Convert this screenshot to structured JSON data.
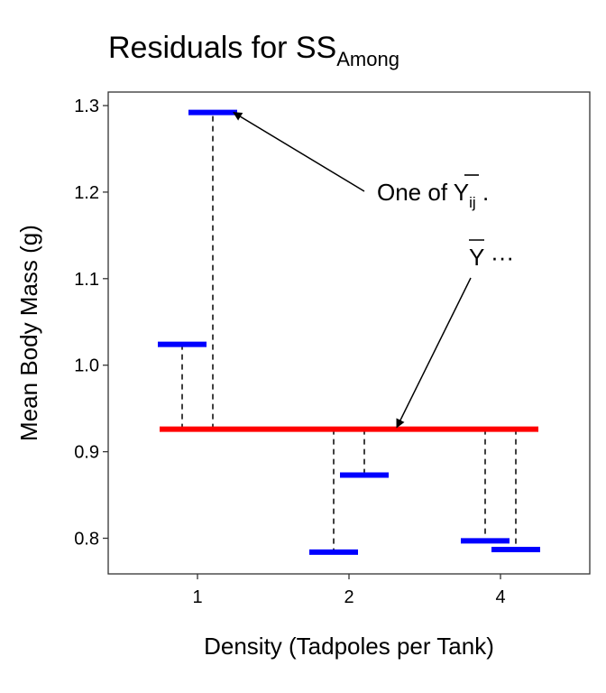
{
  "chart_data": {
    "type": "line",
    "title": "Residuals for SS",
    "title_subscript": "Among",
    "xlabel": "Density (Tadpoles per Tank)",
    "ylabel": "Mean Body Mass (g)",
    "categories": [
      "1",
      "2",
      "4"
    ],
    "ylim": [
      0.76,
      1.31
    ],
    "yticks": [
      "0.8",
      "0.9",
      "1.0",
      "1.1",
      "1.2",
      "1.3"
    ],
    "grand_mean": 0.926,
    "grand_mean_color": "#ff0000",
    "group_means_color": "#0000ff",
    "group_means": [
      {
        "category": "1",
        "values": [
          1.024,
          1.292
        ]
      },
      {
        "category": "2",
        "values": [
          0.784,
          0.873
        ]
      },
      {
        "category": "4",
        "values": [
          0.797,
          0.787
        ]
      }
    ],
    "annotations": [
      {
        "text": "One of Y",
        "subscript": "ij",
        "suffix": " .",
        "target_value": 1.292,
        "target_category": "1"
      },
      {
        "text": "Y",
        "suffix": " ···",
        "target_value": 0.926,
        "target_category": "2"
      }
    ],
    "grid": false
  }
}
